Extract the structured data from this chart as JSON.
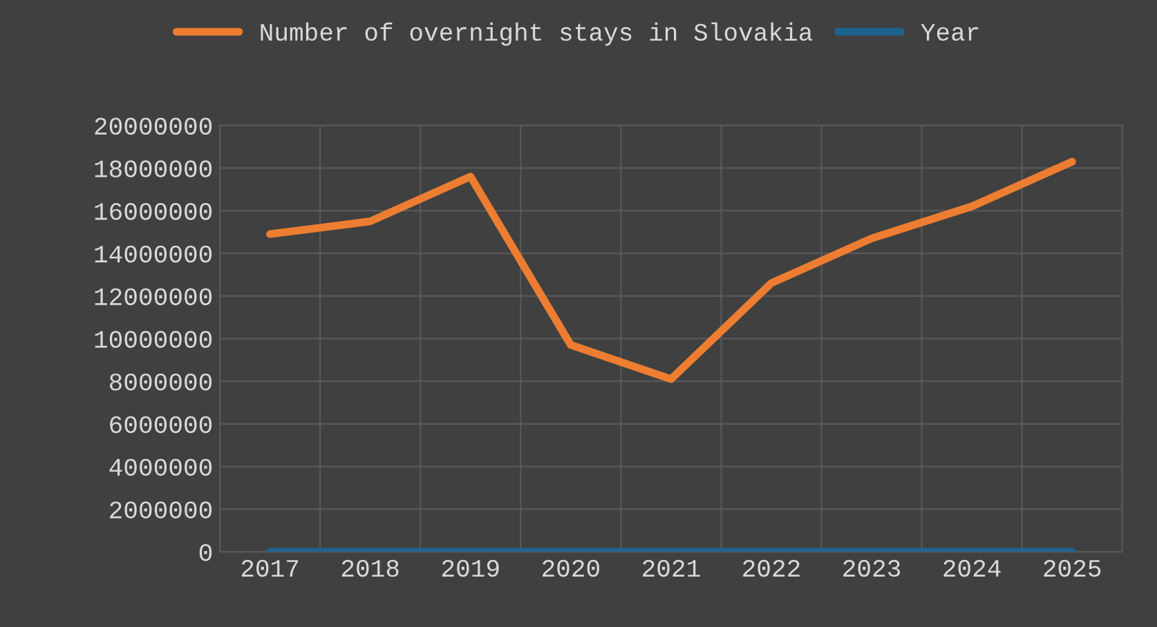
{
  "chart_data": {
    "type": "line",
    "categories": [
      "2017",
      "2018",
      "2019",
      "2020",
      "2021",
      "2022",
      "2023",
      "2024",
      "2025"
    ],
    "series": [
      {
        "name": "Number of overnight stays in Slovakia",
        "color": "#ed7d31",
        "values": [
          14900000,
          15500000,
          17600000,
          9700000,
          8100000,
          12600000,
          14700000,
          16200000,
          18300000
        ]
      },
      {
        "name": "Year",
        "color": "#1f6391",
        "values": [
          2017,
          2018,
          2019,
          2020,
          2021,
          2022,
          2023,
          2024,
          2025
        ]
      }
    ],
    "ylim": [
      0,
      20000000
    ],
    "yticks": [
      0,
      2000000,
      4000000,
      6000000,
      8000000,
      10000000,
      12000000,
      14000000,
      16000000,
      18000000,
      20000000
    ],
    "grid": true,
    "legend": "top",
    "marker": "none",
    "line_style": "solid"
  }
}
